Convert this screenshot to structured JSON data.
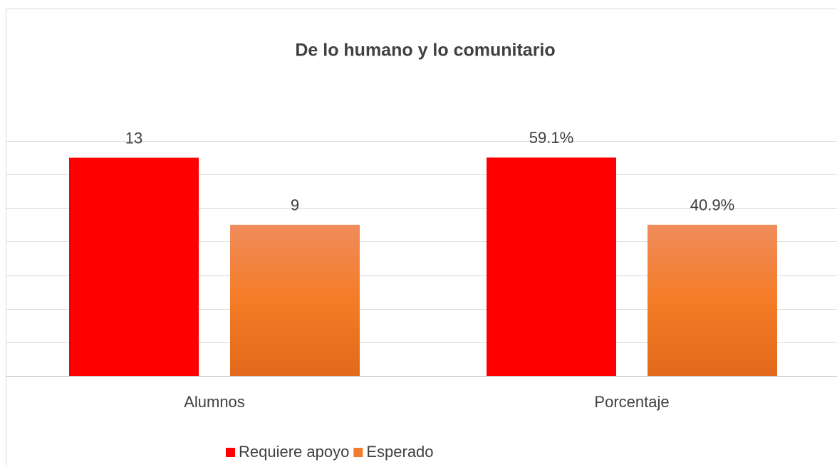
{
  "chart_data": [
    {
      "type": "bar",
      "title": "De lo humano y lo comunitario",
      "categories": [
        "Alumnos"
      ],
      "series": [
        {
          "name": "Requiere apoyo",
          "color": "#ff0000",
          "values": [
            13
          ]
        },
        {
          "name": "Esperado",
          "color": "#f07d2e",
          "values": [
            9
          ]
        }
      ],
      "ylim": [
        0,
        14
      ],
      "yticks": [
        0,
        2,
        4,
        6,
        8,
        10,
        12,
        14
      ],
      "grid": true,
      "legend": "bottom"
    },
    {
      "type": "bar",
      "categories": [
        "Porcentaje"
      ],
      "series": [
        {
          "color": "#ff0000",
          "values": [
            59.1
          ],
          "value_labels": [
            "59.1%"
          ]
        },
        {
          "color": "#f07d2e",
          "values": [
            40.9
          ],
          "value_labels": [
            "40.9%"
          ]
        }
      ],
      "ylim": [
        0,
        63.6
      ]
    }
  ]
}
